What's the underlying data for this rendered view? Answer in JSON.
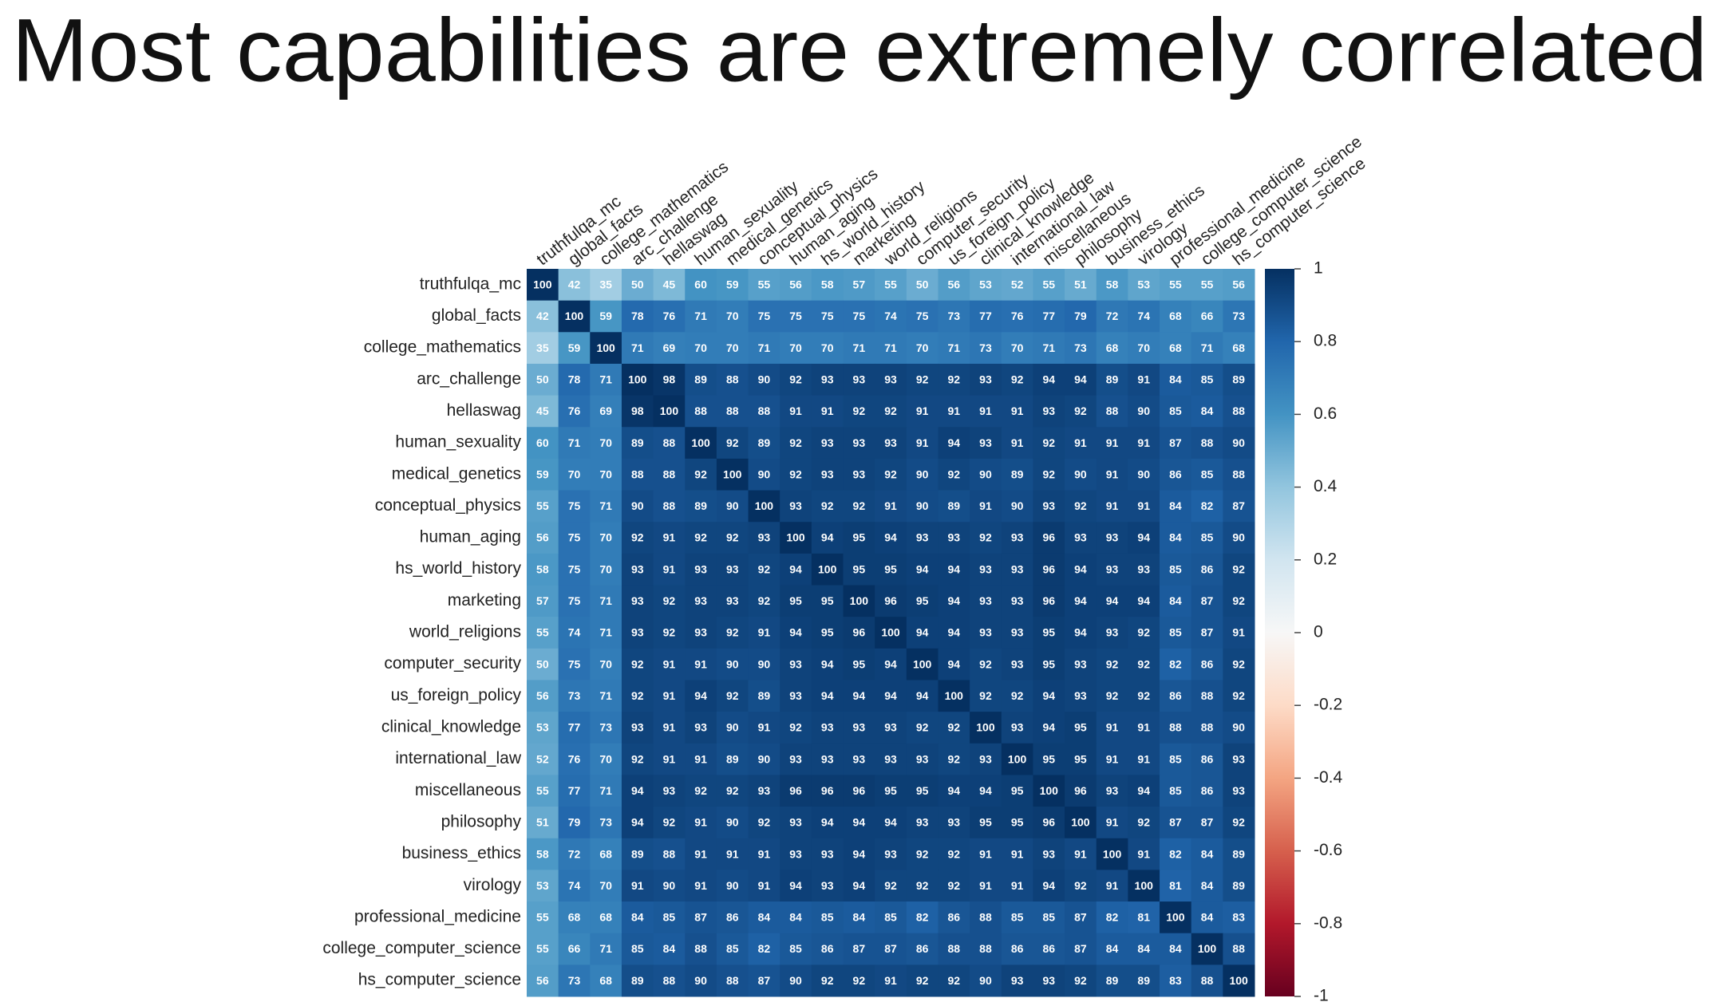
{
  "chart_data": {
    "type": "heatmap",
    "title": "Most capabilities are extremely correlated",
    "categories": [
      "truthfulqa_mc",
      "global_facts",
      "college_mathematics",
      "arc_challenge",
      "hellaswag",
      "human_sexuality",
      "medical_genetics",
      "conceptual_physics",
      "human_aging",
      "hs_world_history",
      "marketing",
      "world_religions",
      "computer_security",
      "us_foreign_policy",
      "clinical_knowledge",
      "international_law",
      "miscellaneous",
      "philosophy",
      "business_ethics",
      "virology",
      "professional_medicine",
      "college_computer_science",
      "hs_computer_science"
    ],
    "values": [
      [
        100,
        42,
        35,
        50,
        45,
        60,
        59,
        55,
        56,
        58,
        57,
        55,
        50,
        56,
        53,
        52,
        55,
        51,
        58,
        53,
        55,
        55,
        56
      ],
      [
        42,
        100,
        59,
        78,
        76,
        71,
        70,
        75,
        75,
        75,
        75,
        74,
        75,
        73,
        77,
        76,
        77,
        79,
        72,
        74,
        68,
        66,
        73
      ],
      [
        35,
        59,
        100,
        71,
        69,
        70,
        70,
        71,
        70,
        70,
        71,
        71,
        70,
        71,
        73,
        70,
        71,
        73,
        68,
        70,
        68,
        71,
        68
      ],
      [
        50,
        78,
        71,
        100,
        98,
        89,
        88,
        90,
        92,
        93,
        93,
        93,
        92,
        92,
        93,
        92,
        94,
        94,
        89,
        91,
        84,
        85,
        89
      ],
      [
        45,
        76,
        69,
        98,
        100,
        88,
        88,
        88,
        91,
        91,
        92,
        92,
        91,
        91,
        91,
        91,
        93,
        92,
        88,
        90,
        85,
        84,
        88
      ],
      [
        60,
        71,
        70,
        89,
        88,
        100,
        92,
        89,
        92,
        93,
        93,
        93,
        91,
        94,
        93,
        91,
        92,
        91,
        91,
        91,
        87,
        88,
        90
      ],
      [
        59,
        70,
        70,
        88,
        88,
        92,
        100,
        90,
        92,
        93,
        93,
        92,
        90,
        92,
        90,
        89,
        92,
        90,
        91,
        90,
        86,
        85,
        88
      ],
      [
        55,
        75,
        71,
        90,
        88,
        89,
        90,
        100,
        93,
        92,
        92,
        91,
        90,
        89,
        91,
        90,
        93,
        92,
        91,
        91,
        84,
        82,
        87
      ],
      [
        56,
        75,
        70,
        92,
        91,
        92,
        92,
        93,
        100,
        94,
        95,
        94,
        93,
        93,
        92,
        93,
        96,
        93,
        93,
        94,
        84,
        85,
        90
      ],
      [
        58,
        75,
        70,
        93,
        91,
        93,
        93,
        92,
        94,
        100,
        95,
        95,
        94,
        94,
        93,
        93,
        96,
        94,
        93,
        93,
        85,
        86,
        92
      ],
      [
        57,
        75,
        71,
        93,
        92,
        93,
        93,
        92,
        95,
        95,
        100,
        96,
        95,
        94,
        93,
        93,
        96,
        94,
        94,
        94,
        84,
        87,
        92
      ],
      [
        55,
        74,
        71,
        93,
        92,
        93,
        92,
        91,
        94,
        95,
        96,
        100,
        94,
        94,
        93,
        93,
        95,
        94,
        93,
        92,
        85,
        87,
        91
      ],
      [
        50,
        75,
        70,
        92,
        91,
        91,
        90,
        90,
        93,
        94,
        95,
        94,
        100,
        94,
        92,
        93,
        95,
        93,
        92,
        92,
        82,
        86,
        92
      ],
      [
        56,
        73,
        71,
        92,
        91,
        94,
        92,
        89,
        93,
        94,
        94,
        94,
        94,
        100,
        92,
        92,
        94,
        93,
        92,
        92,
        86,
        88,
        92
      ],
      [
        53,
        77,
        73,
        93,
        91,
        93,
        90,
        91,
        92,
        93,
        93,
        93,
        92,
        92,
        100,
        93,
        94,
        95,
        91,
        91,
        88,
        88,
        90
      ],
      [
        52,
        76,
        70,
        92,
        91,
        91,
        89,
        90,
        93,
        93,
        93,
        93,
        93,
        92,
        93,
        100,
        95,
        95,
        91,
        91,
        85,
        86,
        93
      ],
      [
        55,
        77,
        71,
        94,
        93,
        92,
        92,
        93,
        96,
        96,
        96,
        95,
        95,
        94,
        94,
        95,
        100,
        96,
        93,
        94,
        85,
        86,
        93
      ],
      [
        51,
        79,
        73,
        94,
        92,
        91,
        90,
        92,
        93,
        94,
        94,
        94,
        93,
        93,
        95,
        95,
        96,
        100,
        91,
        92,
        87,
        87,
        92
      ],
      [
        58,
        72,
        68,
        89,
        88,
        91,
        91,
        91,
        93,
        93,
        94,
        93,
        92,
        92,
        91,
        91,
        93,
        91,
        100,
        91,
        82,
        84,
        89
      ],
      [
        53,
        74,
        70,
        91,
        90,
        91,
        90,
        91,
        94,
        93,
        94,
        92,
        92,
        92,
        91,
        91,
        94,
        92,
        91,
        100,
        81,
        84,
        89
      ],
      [
        55,
        68,
        68,
        84,
        85,
        87,
        86,
        84,
        84,
        85,
        84,
        85,
        82,
        86,
        88,
        85,
        85,
        87,
        82,
        81,
        100,
        84,
        83
      ],
      [
        55,
        66,
        71,
        85,
        84,
        88,
        85,
        82,
        85,
        86,
        87,
        87,
        86,
        88,
        88,
        86,
        86,
        87,
        84,
        84,
        84,
        100,
        88
      ],
      [
        56,
        73,
        68,
        89,
        88,
        90,
        88,
        87,
        90,
        92,
        92,
        91,
        92,
        92,
        90,
        93,
        93,
        92,
        89,
        89,
        83,
        88,
        100
      ]
    ],
    "clim": [
      -100,
      100
    ],
    "cticks": [
      {
        "value": 100,
        "label": "1"
      },
      {
        "value": 80,
        "label": "0.8"
      },
      {
        "value": 60,
        "label": "0.6"
      },
      {
        "value": 40,
        "label": "0.4"
      },
      {
        "value": 20,
        "label": "0.2"
      },
      0,
      {
        "value": -20,
        "label": "-0.2"
      },
      {
        "value": -40,
        "label": "-0.4"
      },
      {
        "value": -60,
        "label": "-0.6"
      },
      {
        "value": -80,
        "label": "-0.8"
      },
      {
        "value": -100,
        "label": "-1"
      }
    ],
    "colormap": [
      "#67001f",
      "#b2182b",
      "#d6604d",
      "#f4a582",
      "#fddbc7",
      "#f7f7f7",
      "#d1e5f0",
      "#92c5de",
      "#4393c3",
      "#2166ac",
      "#053061"
    ]
  }
}
